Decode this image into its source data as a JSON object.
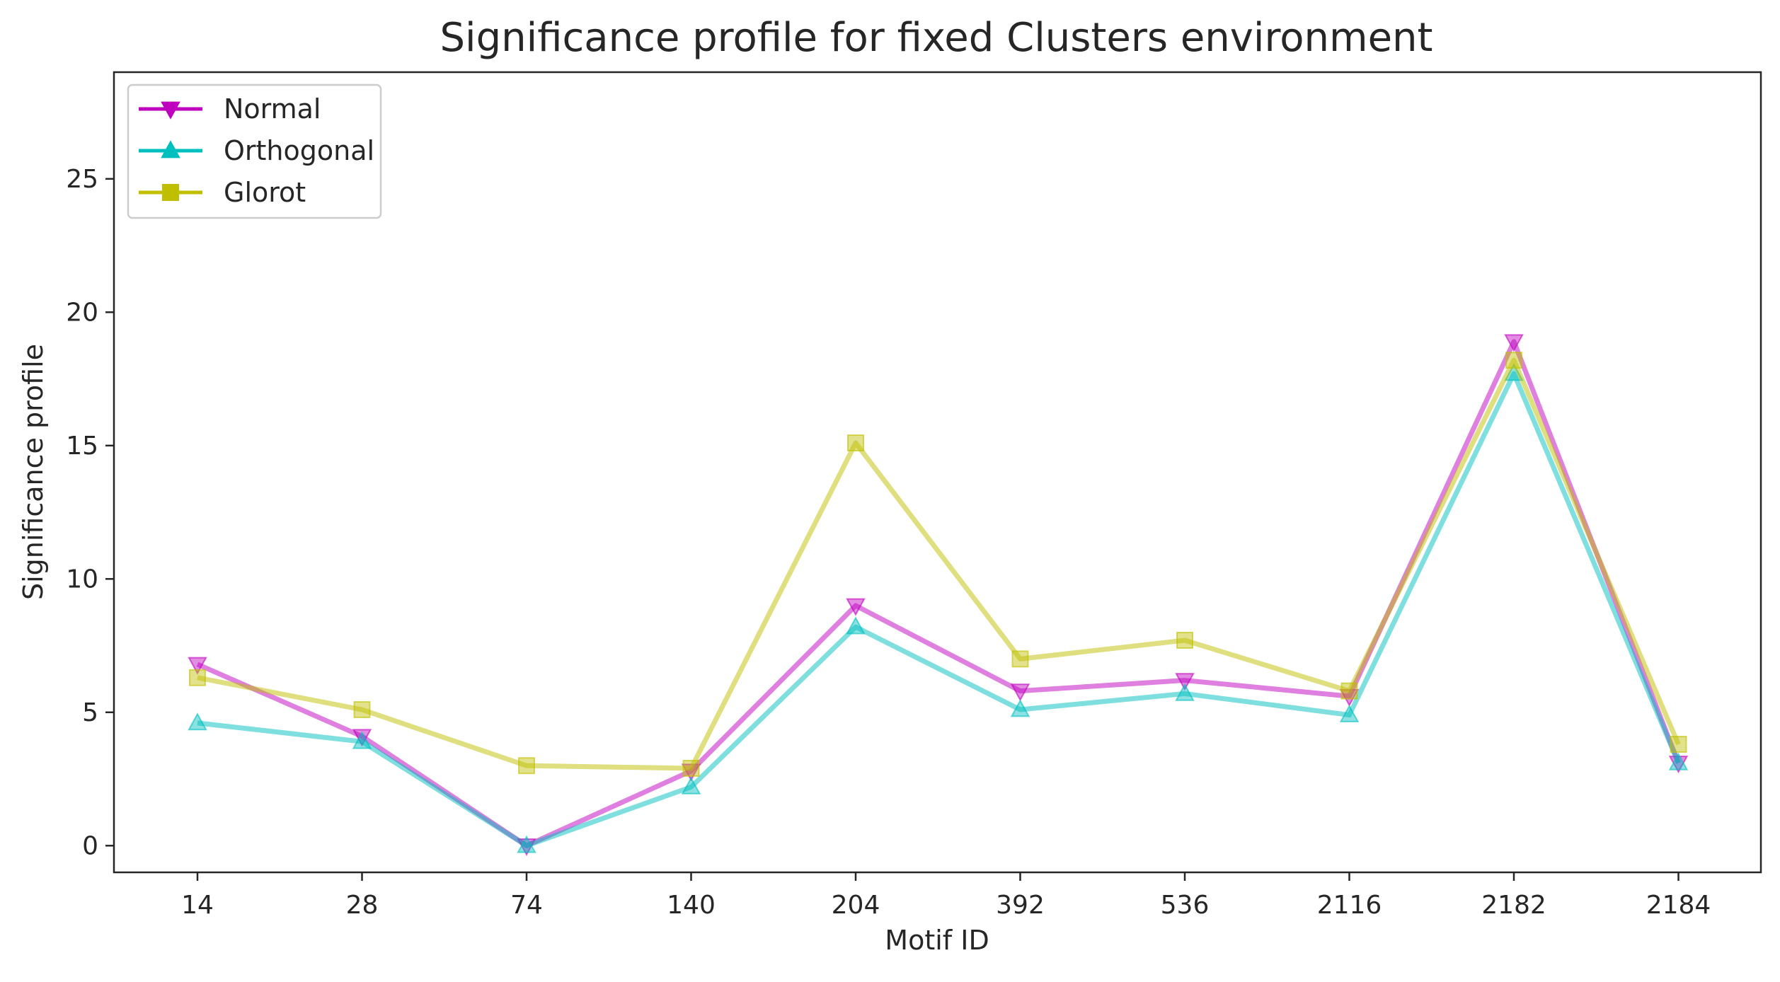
{
  "chart_data": {
    "type": "line",
    "title": "Significance profile for fixed Clusters environment",
    "xlabel": "Motif ID",
    "ylabel": "Significance profile",
    "categories": [
      "14",
      "28",
      "74",
      "140",
      "204",
      "392",
      "536",
      "2116",
      "2182",
      "2184"
    ],
    "ylim": [
      -1,
      29
    ],
    "yticks": [
      0,
      5,
      10,
      15,
      20,
      25
    ],
    "grid": false,
    "legend_position": "top-left",
    "series": [
      {
        "name": "Normal",
        "color": "#bf00bf",
        "marker": "triangle-down",
        "values": [
          6.8,
          4.1,
          0.0,
          2.8,
          9.0,
          5.8,
          6.2,
          5.6,
          18.9,
          3.1
        ]
      },
      {
        "name": "Orthogonal",
        "color": "#00bfbf",
        "marker": "triangle-up",
        "values": [
          4.6,
          3.9,
          0.0,
          2.2,
          8.2,
          5.1,
          5.7,
          4.9,
          17.7,
          3.1
        ]
      },
      {
        "name": "Glorot",
        "color": "#bfbf00",
        "marker": "square",
        "values": [
          6.3,
          5.1,
          3.0,
          2.9,
          15.1,
          7.0,
          7.7,
          5.8,
          18.2,
          3.8
        ]
      }
    ]
  }
}
